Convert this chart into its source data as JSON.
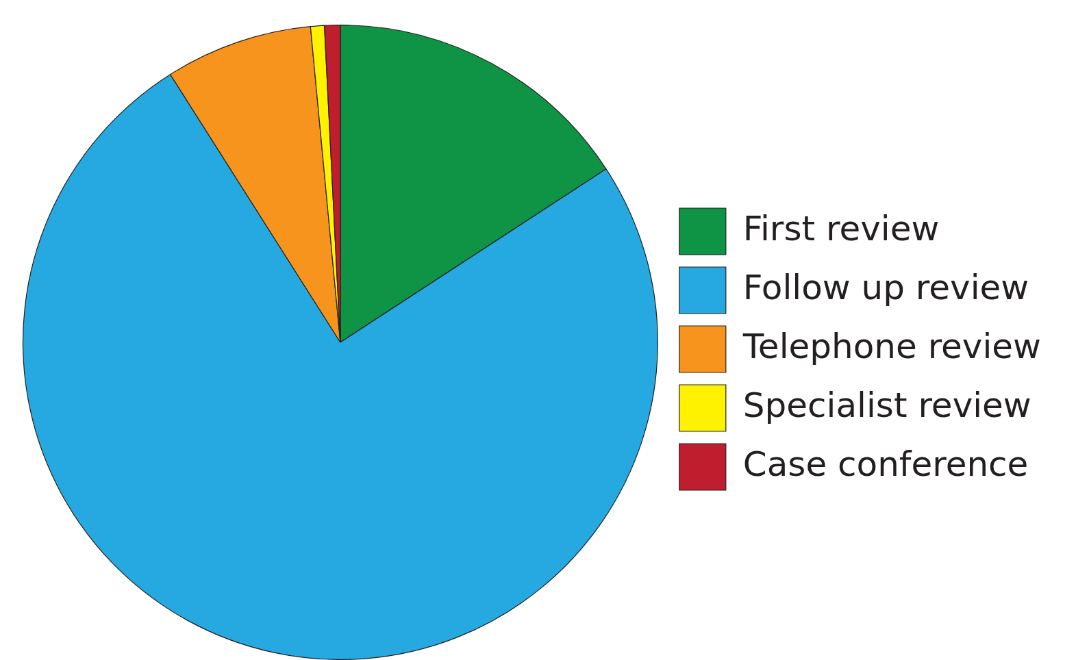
{
  "chart_data": {
    "type": "pie",
    "categories": [
      "First review",
      "Follow up review",
      "Telephone review",
      "Specialist review",
      "Case conference"
    ],
    "values": [
      15.8,
      75.2,
      7.5,
      0.7,
      0.8
    ],
    "colors": [
      "#0f9345",
      "#25a9e0",
      "#f7941d",
      "#fff200",
      "#be1e2d"
    ],
    "legend": "right"
  }
}
